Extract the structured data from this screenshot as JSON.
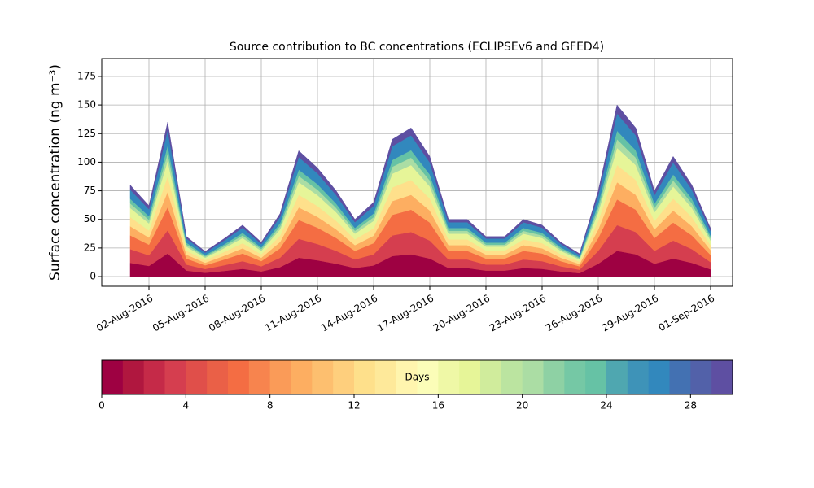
{
  "chart_data": {
    "type": "stacked_area",
    "title": "Source contribution to BC concentrations (ECLIPSEv6 and GFED4)",
    "ylabel": "Surface concentration (ng m⁻³)",
    "x": [
      "01-Aug-2016",
      "02-Aug-2016",
      "03-Aug-2016",
      "04-Aug-2016",
      "05-Aug-2016",
      "06-Aug-2016",
      "07-Aug-2016",
      "08-Aug-2016",
      "09-Aug-2016",
      "10-Aug-2016",
      "11-Aug-2016",
      "12-Aug-2016",
      "13-Aug-2016",
      "14-Aug-2016",
      "15-Aug-2016",
      "16-Aug-2016",
      "17-Aug-2016",
      "18-Aug-2016",
      "19-Aug-2016",
      "20-Aug-2016",
      "21-Aug-2016",
      "22-Aug-2016",
      "23-Aug-2016",
      "24-Aug-2016",
      "25-Aug-2016",
      "26-Aug-2016",
      "27-Aug-2016",
      "28-Aug-2016",
      "29-Aug-2016",
      "30-Aug-2016",
      "31-Aug-2016",
      "01-Sep-2016"
    ],
    "xticks": [
      "02-Aug-2016",
      "05-Aug-2016",
      "08-Aug-2016",
      "11-Aug-2016",
      "14-Aug-2016",
      "17-Aug-2016",
      "20-Aug-2016",
      "23-Aug-2016",
      "26-Aug-2016",
      "29-Aug-2016",
      "01-Sep-2016"
    ],
    "ylim": [
      -8.5,
      190.6
    ],
    "yticks": [
      0,
      25,
      50,
      75,
      100,
      125,
      150,
      175
    ],
    "grid": true,
    "series": [
      {
        "color": "#9e0142",
        "values": [
          12,
          9.3,
          20.25,
          5.25,
          3.3,
          4.95,
          6.75,
          4.5,
          8.25,
          16.5,
          14.25,
          11.25,
          7.5,
          9.75,
          18,
          19.5,
          15.75,
          7.5,
          7.5,
          5.25,
          5.25,
          7.5,
          6.75,
          4.5,
          3,
          11.25,
          22.5,
          19.5,
          11.25,
          15.75,
          12,
          6.3
        ]
      },
      {
        "color": "#d53e4f",
        "values": [
          12,
          9.3,
          20.25,
          5.25,
          3.3,
          4.95,
          6.75,
          4.5,
          8.25,
          16.5,
          14.25,
          11.25,
          7.5,
          9.75,
          18,
          19.5,
          15.75,
          7.5,
          7.5,
          5.25,
          5.25,
          7.5,
          6.75,
          4.5,
          3,
          11.25,
          22.5,
          19.5,
          11.25,
          15.75,
          12,
          6.3
        ]
      },
      {
        "color": "#f46d43",
        "values": [
          12,
          9.3,
          20.25,
          5.25,
          3.3,
          4.95,
          6.75,
          4.5,
          8.25,
          16.5,
          14.25,
          11.25,
          7.5,
          9.75,
          18,
          19.5,
          15.75,
          7.5,
          7.5,
          5.25,
          5.25,
          7.5,
          6.75,
          4.5,
          3,
          11.25,
          22.5,
          19.5,
          11.25,
          15.75,
          12,
          6.3
        ]
      },
      {
        "color": "#fdae61",
        "values": [
          8,
          6.2,
          13.5,
          3.5,
          2.2,
          3.3,
          4.5,
          3,
          5.5,
          11,
          9.5,
          7.5,
          5,
          6.5,
          12,
          13,
          10.5,
          5,
          5,
          3.5,
          3.5,
          5,
          4.5,
          3,
          2,
          7.5,
          15,
          13,
          7.5,
          10.5,
          8,
          4.2
        ]
      },
      {
        "color": "#fee08b",
        "values": [
          8,
          6.2,
          13.5,
          3.5,
          2.2,
          3.3,
          4.5,
          3,
          5.5,
          11,
          9.5,
          7.5,
          5,
          6.5,
          12,
          13,
          10.5,
          5,
          5,
          3.5,
          3.5,
          5,
          4.5,
          3,
          2,
          7.5,
          15,
          13,
          7.5,
          10.5,
          8,
          4.2
        ]
      },
      {
        "color": "#e6f598",
        "values": [
          8,
          6.2,
          13.5,
          3.5,
          2.2,
          3.3,
          4.5,
          3,
          5.5,
          11,
          9.5,
          7.5,
          5,
          6.5,
          12,
          13,
          10.5,
          5,
          5,
          3.5,
          3.5,
          5,
          4.5,
          3,
          2,
          7.5,
          15,
          13,
          7.5,
          10.5,
          8,
          4.2
        ]
      },
      {
        "color": "#abdda4",
        "values": [
          4,
          3.1,
          6.75,
          1.75,
          1.1,
          1.65,
          2.25,
          1.5,
          2.75,
          5.5,
          4.75,
          3.75,
          2.5,
          3.25,
          6,
          6.5,
          5.25,
          2.5,
          2.5,
          1.75,
          1.75,
          2.5,
          2.25,
          1.5,
          1,
          3.75,
          7.5,
          6.5,
          3.75,
          5.25,
          4,
          2.1
        ]
      },
      {
        "color": "#66c2a5",
        "values": [
          4,
          3.1,
          6.75,
          1.75,
          1.1,
          1.65,
          2.25,
          1.5,
          2.75,
          5.5,
          4.75,
          3.75,
          2.5,
          3.25,
          6,
          6.5,
          5.25,
          2.5,
          2.5,
          1.75,
          1.75,
          2.5,
          2.25,
          1.5,
          1,
          3.75,
          7.5,
          6.5,
          3.75,
          5.25,
          4,
          2.1
        ]
      },
      {
        "color": "#3288bd",
        "values": [
          8,
          6.2,
          13.5,
          3.5,
          2.2,
          3.3,
          4.5,
          3,
          5.5,
          11,
          9.5,
          7.5,
          5,
          6.5,
          12,
          13,
          10.5,
          5,
          5,
          3.5,
          3.5,
          5,
          4.5,
          3,
          2,
          7.5,
          15,
          13,
          7.5,
          10.5,
          8,
          4.2
        ]
      },
      {
        "color": "#5e4fa2",
        "values": [
          4,
          3.1,
          6.75,
          1.75,
          1.1,
          1.65,
          2.25,
          1.5,
          2.75,
          5.5,
          4.75,
          3.75,
          2.5,
          3.25,
          6,
          6.5,
          5.25,
          2.5,
          2.5,
          1.75,
          1.75,
          2.5,
          2.25,
          1.5,
          1,
          3.75,
          7.5,
          6.5,
          3.75,
          5.25,
          4,
          2.1
        ]
      }
    ],
    "colorbar": {
      "label": "Days",
      "lim": [
        0,
        30
      ],
      "ticks": [
        0,
        4,
        8,
        12,
        16,
        20,
        24,
        28
      ],
      "colors": [
        "#9e0142",
        "#b0173f",
        "#c52a48",
        "#d53e4f",
        "#e04f4a",
        "#ea6047",
        "#f46d43",
        "#f7844e",
        "#fa9b58",
        "#fdae61",
        "#fdbf6f",
        "#fecf7d",
        "#fee08b",
        "#fee99a",
        "#fff5ae",
        "#fbfdb8",
        "#eff8a6",
        "#e6f598",
        "#d0ec9c",
        "#bbe4a0",
        "#abdda4",
        "#8ed1a4",
        "#75c8a5",
        "#66c2a5",
        "#4fa7b0",
        "#3e93b8",
        "#3288bd",
        "#4371b2",
        "#5261a9",
        "#5e4fa2"
      ]
    }
  }
}
